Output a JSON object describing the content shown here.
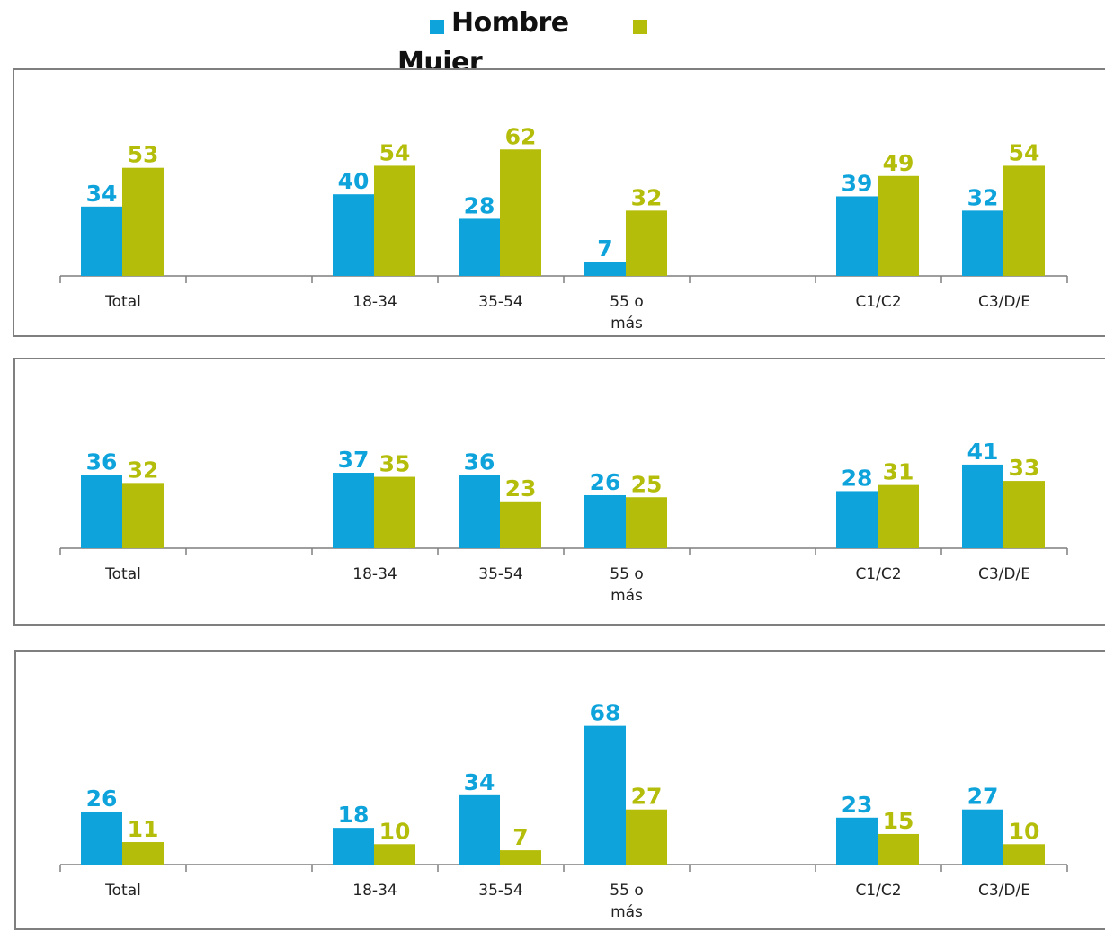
{
  "legend": {
    "items": [
      {
        "label": "Hombre",
        "color": "#0fa3dc"
      },
      {
        "label": "Mujer",
        "color": "#b4bd09"
      }
    ]
  },
  "chart_data": [
    {
      "type": "bar",
      "categories": [
        "Total",
        "",
        "18-34",
        "35-54",
        "55 o\nmás",
        "",
        "C1/C2",
        "C3/D/E"
      ],
      "series": [
        {
          "name": "Hombre",
          "values": [
            34,
            null,
            40,
            28,
            7,
            null,
            39,
            32
          ]
        },
        {
          "name": "Mujer",
          "values": [
            53,
            null,
            54,
            62,
            32,
            null,
            49,
            54
          ]
        }
      ],
      "ylim": [
        0,
        70
      ],
      "grid": false
    },
    {
      "type": "bar",
      "categories": [
        "Total",
        "",
        "18-34",
        "35-54",
        "55 o\nmás",
        "",
        "C1/C2",
        "C3/D/E"
      ],
      "series": [
        {
          "name": "Hombre",
          "values": [
            36,
            null,
            37,
            36,
            26,
            null,
            28,
            41
          ]
        },
        {
          "name": "Mujer",
          "values": [
            32,
            null,
            35,
            23,
            25,
            null,
            31,
            33
          ]
        }
      ],
      "ylim": [
        0,
        70
      ],
      "grid": false
    },
    {
      "type": "bar",
      "categories": [
        "Total",
        "",
        "18-34",
        "35-54",
        "55 o\nmás",
        "",
        "C1/C2",
        "C3/D/E"
      ],
      "series": [
        {
          "name": "Hombre",
          "values": [
            26,
            null,
            18,
            34,
            68,
            null,
            23,
            27
          ]
        },
        {
          "name": "Mujer",
          "values": [
            11,
            null,
            10,
            7,
            27,
            null,
            15,
            10
          ]
        }
      ],
      "ylim": [
        0,
        70
      ],
      "grid": false
    }
  ]
}
